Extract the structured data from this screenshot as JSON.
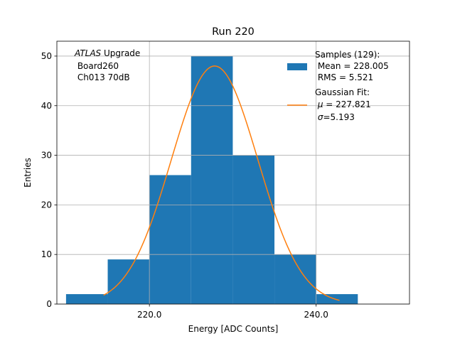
{
  "chart_data": {
    "type": "bar",
    "title": "Run 220",
    "xlabel": "Energy [ADC Counts]",
    "ylabel": "Entries",
    "xlim": [
      208.9,
      251.2
    ],
    "ylim": [
      0,
      53
    ],
    "grid": true,
    "x_ticks": [
      220.0,
      240.0
    ],
    "x_tick_labels": [
      "220.0",
      "240.0"
    ],
    "y_ticks": [
      0,
      10,
      20,
      30,
      40,
      50
    ],
    "y_tick_labels": [
      "0",
      "10",
      "20",
      "30",
      "40",
      "50"
    ],
    "bin_edges": [
      210,
      215,
      220,
      225,
      230,
      235,
      240,
      245
    ],
    "values": [
      2,
      9,
      26,
      50,
      30,
      10,
      2
    ],
    "bar_color": "#1f77b4",
    "fit": {
      "type": "gaussian",
      "mu": 227.821,
      "sigma": 5.193,
      "peak": 48,
      "x_range": [
        214.5,
        242.8
      ],
      "color": "#ff7f0e"
    },
    "annotation": {
      "italic": "ATLAS",
      "rest": " Upgrade",
      "lines": [
        " Board260",
        " Ch013 70dB"
      ]
    },
    "legend": {
      "location": "top-right",
      "entries": [
        {
          "kind": "patch",
          "lines": [
            "Samples (129):",
            " Mean = 228.005",
            " RMS = 5.521"
          ]
        },
        {
          "kind": "line",
          "lines": [
            "Gaussian Fit:",
            "$\\mu$ = 227.821",
            "$\\sigma$=5.193"
          ]
        }
      ],
      "fit_mu_label": " = 227.821",
      "fit_sigma_label": "=5.193"
    }
  }
}
